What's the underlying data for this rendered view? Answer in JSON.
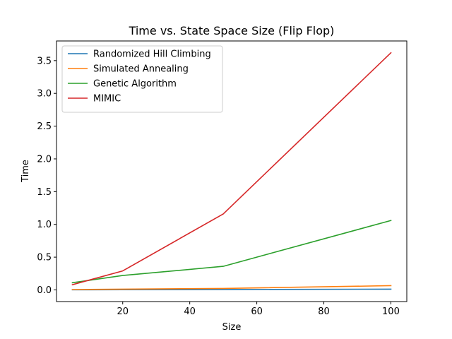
{
  "chart_data": {
    "type": "line",
    "title": "Time vs. State Space Size (Flip Flop)",
    "xlabel": "Size",
    "ylabel": "Time",
    "x": [
      5,
      20,
      50,
      100
    ],
    "xlim": [
      0.25,
      104.75
    ],
    "ylim": [
      -0.178,
      3.8
    ],
    "xticks": [
      20,
      40,
      60,
      80,
      100
    ],
    "yticks": [
      0.0,
      0.5,
      1.0,
      1.5,
      2.0,
      2.5,
      3.0,
      3.5
    ],
    "xtick_labels": [
      "20",
      "40",
      "60",
      "80",
      "100"
    ],
    "ytick_labels": [
      "0.0",
      "0.5",
      "1.0",
      "1.5",
      "2.0",
      "2.5",
      "3.0",
      "3.5"
    ],
    "grid": false,
    "legend_position": "top-left",
    "series": [
      {
        "name": "Randomized Hill Climbing",
        "color": "#1f77b4",
        "values": [
          0.002,
          0.003,
          0.006,
          0.012
        ]
      },
      {
        "name": "Simulated Annealing",
        "color": "#ff7f0e",
        "values": [
          0.005,
          0.012,
          0.022,
          0.065
        ]
      },
      {
        "name": "Genetic Algorithm",
        "color": "#2ca02c",
        "values": [
          0.11,
          0.22,
          0.36,
          1.06
        ]
      },
      {
        "name": "MIMIC",
        "color": "#d62728",
        "values": [
          0.08,
          0.29,
          1.16,
          3.62
        ]
      }
    ]
  }
}
